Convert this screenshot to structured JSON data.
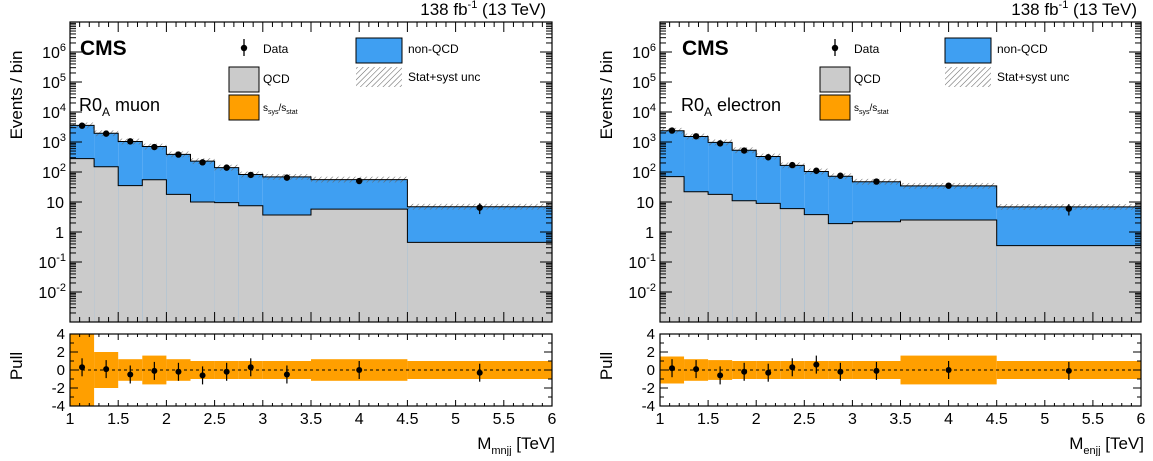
{
  "figure": {
    "shared": {
      "lumi_text": "138 fb",
      "lumi_exp": "-1",
      "energy_text": "(13 TeV)",
      "experiment": "CMS",
      "ylabel": "Events / bin",
      "pull_label": "Pull",
      "legend": {
        "data": "Data",
        "nonqcd": "non-QCD",
        "qcd": "QCD",
        "unc": "Stat+syst unc",
        "ratio_main": "s",
        "ratio_sub1": "sys",
        "ratio_slash": "/s",
        "ratio_sub2": "stat"
      }
    },
    "panels": [
      {
        "region_main": "R0",
        "region_sub": "A",
        "region_suffix": " muon",
        "xlabel_main": "M",
        "xlabel_sub": "mnjj",
        "xlabel_unit": " [TeV]"
      },
      {
        "region_main": "R0",
        "region_sub": "A",
        "region_suffix": " electron",
        "xlabel_main": "M",
        "xlabel_sub": "enjj",
        "xlabel_unit": " [TeV]"
      }
    ]
  },
  "colors": {
    "qcd": "#cbcbcb",
    "nonqcd": "#3f9ff2",
    "band": "#ff9f00",
    "data": "#000000"
  },
  "chart_data": [
    {
      "type": "bar",
      "title": "R0A muon",
      "scale": "log",
      "ylim": [
        0.001,
        10000000
      ],
      "xlim": [
        1,
        6
      ],
      "ylabel": "Events / bin",
      "xlabel": "Mmnjj [TeV]",
      "x_ticks": [
        "1",
        "1.5",
        "2",
        "2.5",
        "3",
        "3.5",
        "4",
        "4.5",
        "5",
        "5.5",
        "6"
      ],
      "y_ticks": [
        "10^-2",
        "10^-1",
        "1",
        "10",
        "10^2",
        "10^3",
        "10^4",
        "10^5",
        "10^6"
      ],
      "bin_edges": [
        1.0,
        1.25,
        1.5,
        1.75,
        2.0,
        2.25,
        2.5,
        2.75,
        3.0,
        3.5,
        4.5,
        6.0
      ],
      "series": [
        {
          "name": "QCD",
          "values": [
            280,
            150,
            35,
            55,
            18,
            10,
            9.5,
            7.5,
            3.7,
            5.8,
            0.45
          ]
        },
        {
          "name": "non-QCD",
          "values": [
            3300,
            1800,
            1000,
            650,
            370,
            220,
            130,
            75,
            65,
            50,
            6.5
          ]
        },
        {
          "name": "Data",
          "values": [
            3500,
            1900,
            1050,
            680,
            380,
            210,
            140,
            80,
            65,
            50,
            6.5
          ]
        }
      ],
      "pull": {
        "ylim": [
          -4,
          4
        ],
        "y_ticks": [
          "-4",
          "-2",
          "0",
          "2",
          "4"
        ],
        "values": [
          0.3,
          0.1,
          -0.5,
          -0.1,
          -0.2,
          -0.6,
          -0.2,
          0.3,
          -0.5,
          0.0,
          -0.3
        ],
        "band": [
          4.0,
          2.0,
          1.2,
          1.6,
          1.2,
          1.0,
          1.0,
          1.0,
          1.0,
          1.2,
          1.0
        ]
      }
    },
    {
      "type": "bar",
      "title": "R0A electron",
      "scale": "log",
      "ylim": [
        0.001,
        10000000
      ],
      "xlim": [
        1,
        6
      ],
      "ylabel": "Events / bin",
      "xlabel": "Menjj [TeV]",
      "x_ticks": [
        "1",
        "1.5",
        "2",
        "2.5",
        "3",
        "3.5",
        "4",
        "4.5",
        "5",
        "5.5",
        "6"
      ],
      "y_ticks": [
        "10^-2",
        "10^-1",
        "1",
        "10",
        "10^2",
        "10^3",
        "10^4",
        "10^5",
        "10^6"
      ],
      "bin_edges": [
        1.0,
        1.25,
        1.5,
        1.75,
        2.0,
        2.25,
        2.5,
        2.75,
        3.0,
        3.5,
        4.5,
        6.0
      ],
      "series": [
        {
          "name": "QCD",
          "values": [
            70,
            22,
            18,
            11,
            9,
            6,
            3.8,
            1.9,
            2.2,
            2.5,
            0.35
          ]
        },
        {
          "name": "non-QCD",
          "values": [
            2300,
            1500,
            950,
            520,
            320,
            160,
            100,
            70,
            45,
            32,
            6.5
          ]
        },
        {
          "name": "Data",
          "values": [
            2400,
            1550,
            900,
            520,
            310,
            170,
            110,
            75,
            48,
            35,
            6.0
          ]
        }
      ],
      "pull": {
        "ylim": [
          -4,
          4
        ],
        "y_ticks": [
          "-4",
          "-2",
          "0",
          "2",
          "4"
        ],
        "values": [
          0.2,
          0.1,
          -0.6,
          -0.2,
          -0.3,
          0.3,
          0.6,
          -0.2,
          -0.1,
          0.0,
          -0.1
        ],
        "band": [
          1.5,
          1.2,
          1.1,
          1.0,
          1.0,
          1.0,
          1.0,
          1.0,
          1.0,
          1.6,
          1.0
        ]
      }
    }
  ]
}
